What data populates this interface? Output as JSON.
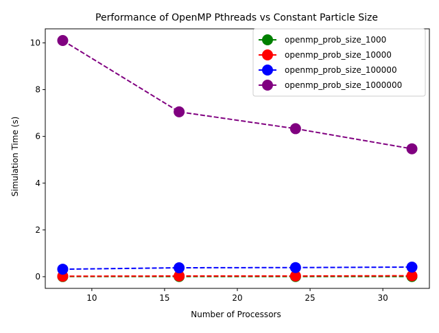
{
  "chart_data": {
    "type": "line",
    "title": "Performance of OpenMP Pthreads vs Constant Particle Size",
    "xlabel": "Number of Processors",
    "ylabel": "Simulation Time (s)",
    "xlim": [
      6.8,
      33.2
    ],
    "ylim": [
      -0.5,
      10.6
    ],
    "xticks": [
      10,
      15,
      20,
      25,
      30
    ],
    "yticks": [
      0,
      2,
      4,
      6,
      8,
      10
    ],
    "grid": false,
    "legend_position": "top-right",
    "x": [
      8,
      16,
      24,
      32
    ],
    "series": [
      {
        "name": "openmp_prob_size_1000",
        "color": "#008000",
        "values": [
          0.005,
          0.006,
          0.006,
          0.007
        ]
      },
      {
        "name": "openmp_prob_size_10000",
        "color": "#ff0000",
        "values": [
          0.02,
          0.03,
          0.03,
          0.04
        ]
      },
      {
        "name": "openmp_prob_size_100000",
        "color": "#0000ff",
        "values": [
          0.32,
          0.38,
          0.39,
          0.41
        ]
      },
      {
        "name": "openmp_prob_size_1000000",
        "color": "#800080",
        "values": [
          10.1,
          7.05,
          6.33,
          5.47
        ]
      }
    ]
  }
}
